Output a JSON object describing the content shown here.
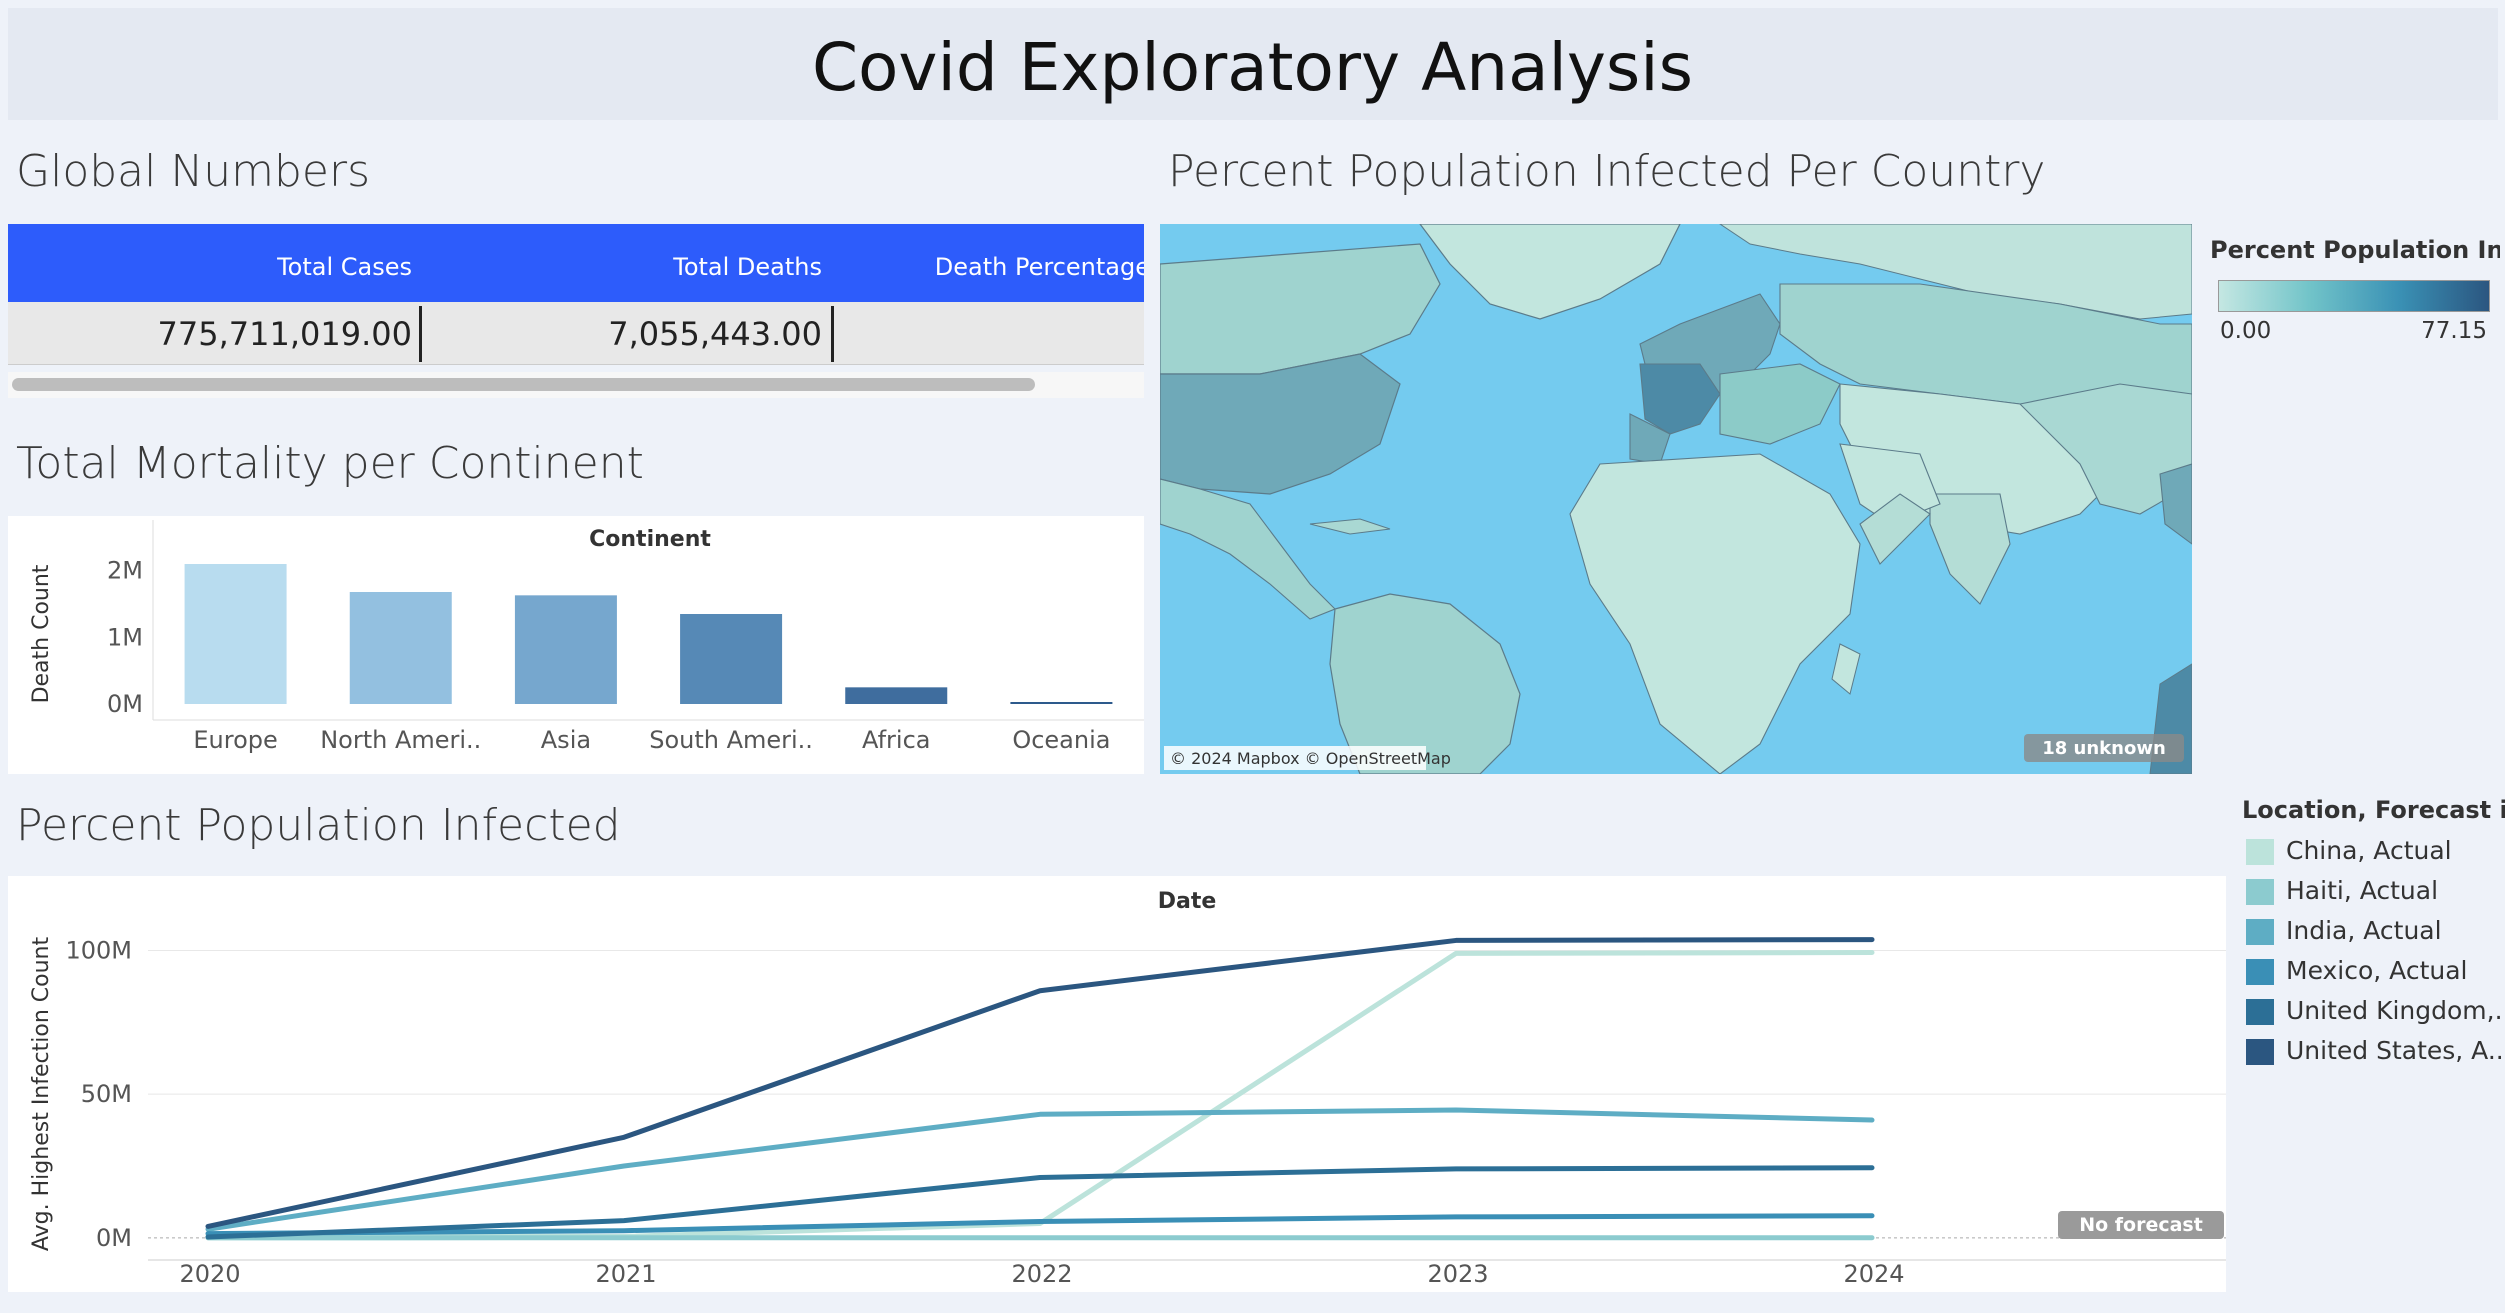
{
  "dashboard": {
    "title": "Covid Exploratory Analysis"
  },
  "global_numbers": {
    "title": "Global Numbers",
    "columns": [
      "Total Cases",
      "Total Deaths",
      "Death Percentage"
    ],
    "values": [
      "775,711,019.00",
      "7,055,443.00",
      ""
    ]
  },
  "mortality": {
    "title": "Total Mortality per Continent",
    "chart_data": {
      "type": "bar",
      "title": "Continent",
      "xlabel": "Continent",
      "ylabel": "Death Count",
      "categories": [
        "Europe",
        "North Ameri..",
        "Asia",
        "South Ameri..",
        "Africa",
        "Oceania"
      ],
      "values": [
        2100000,
        1680000,
        1630000,
        1350000,
        250000,
        30000
      ],
      "yticks": [
        "2M",
        "1M",
        "0M"
      ],
      "ylim": [
        0,
        2100000
      ],
      "colors": [
        "#b8dcef",
        "#93c0e0",
        "#76a7ce",
        "#5689b6",
        "#3f6d9e",
        "#2d5a8c"
      ]
    }
  },
  "map": {
    "title": "Percent Population Infected Per Country",
    "legend_title": "Percent Population Infe..",
    "legend_min": "0.00",
    "legend_max": "77.15",
    "attribution": "© 2024 Mapbox © OpenStreetMap",
    "unknown_badge": "18 unknown",
    "colors": {
      "ocean": "#74cbef",
      "land_low": "#c2e6de",
      "land_mid": "#8ccbc8",
      "land_high": "#4d8aa6"
    }
  },
  "infection": {
    "title": "Percent Population Infected",
    "chart_data": {
      "type": "line",
      "title": "Date",
      "xlabel": "Date",
      "ylabel": "Avg. Highest Infection Count",
      "x": [
        2020,
        2021,
        2022,
        2023,
        2024
      ],
      "yticks": [
        {
          "value": 0,
          "label": "0M"
        },
        {
          "value": 50000000,
          "label": "50M"
        },
        {
          "value": 100000000,
          "label": "100M"
        }
      ],
      "ylim": [
        -7000000,
        112000000
      ],
      "series": [
        {
          "name": "China, Actual",
          "color": "#bce3db",
          "values": [
            500000,
            500000,
            5000000,
            99000000,
            99300000
          ]
        },
        {
          "name": "Haiti, Actual",
          "color": "#8ccbcf",
          "values": [
            10000,
            30000,
            34000,
            34000,
            34000
          ]
        },
        {
          "name": "India, Actual",
          "color": "#5eadc4",
          "values": [
            3000000,
            25000000,
            43000000,
            44500000,
            41000000
          ]
        },
        {
          "name": "Mexico, Actual",
          "color": "#3a8fb6",
          "values": [
            1500000,
            2500000,
            5700000,
            7300000,
            7700000
          ]
        },
        {
          "name": "United Kingdom,..",
          "color": "#2c6f96",
          "values": [
            300000,
            6000000,
            21000000,
            24000000,
            24400000
          ]
        },
        {
          "name": "United States, A..",
          "color": "#2b5680",
          "values": [
            4000000,
            35000000,
            86000000,
            103500000,
            103800000
          ]
        }
      ],
      "no_forecast_label": "No forecast"
    },
    "legend_title": "Location, Forecast in.."
  }
}
